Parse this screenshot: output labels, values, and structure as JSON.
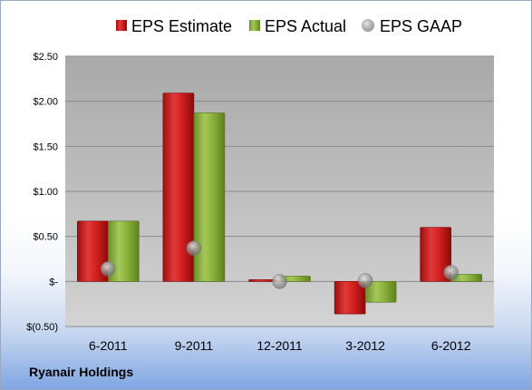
{
  "company": "Ryanair Holdings",
  "chart_data": {
    "type": "bar",
    "categories": [
      "6-2011",
      "9-2011",
      "12-2011",
      "3-2012",
      "6-2012"
    ],
    "series": [
      {
        "name": "EPS Estimate",
        "kind": "bar",
        "color": "#d42020",
        "values": [
          0.67,
          2.09,
          0.02,
          -0.36,
          0.6
        ]
      },
      {
        "name": "EPS Actual",
        "kind": "bar",
        "color": "#8cb43c",
        "values": [
          0.67,
          1.87,
          0.06,
          -0.23,
          0.08
        ]
      },
      {
        "name": "EPS GAAP",
        "kind": "marker",
        "color": "#a9a9a9",
        "values": [
          0.14,
          0.37,
          0.0,
          0.01,
          0.1
        ]
      }
    ],
    "y_ticks": [
      {
        "value": 2.5,
        "label": "$2.50"
      },
      {
        "value": 2.0,
        "label": "$2.00"
      },
      {
        "value": 1.5,
        "label": "$1.50"
      },
      {
        "value": 1.0,
        "label": "$1.00"
      },
      {
        "value": 0.5,
        "label": "$0.50"
      },
      {
        "value": 0.0,
        "label": "$-"
      },
      {
        "value": -0.5,
        "label": "$(0.50)"
      }
    ],
    "ylim": [
      -0.5,
      2.5
    ],
    "grid": true,
    "legend_position": "top"
  }
}
